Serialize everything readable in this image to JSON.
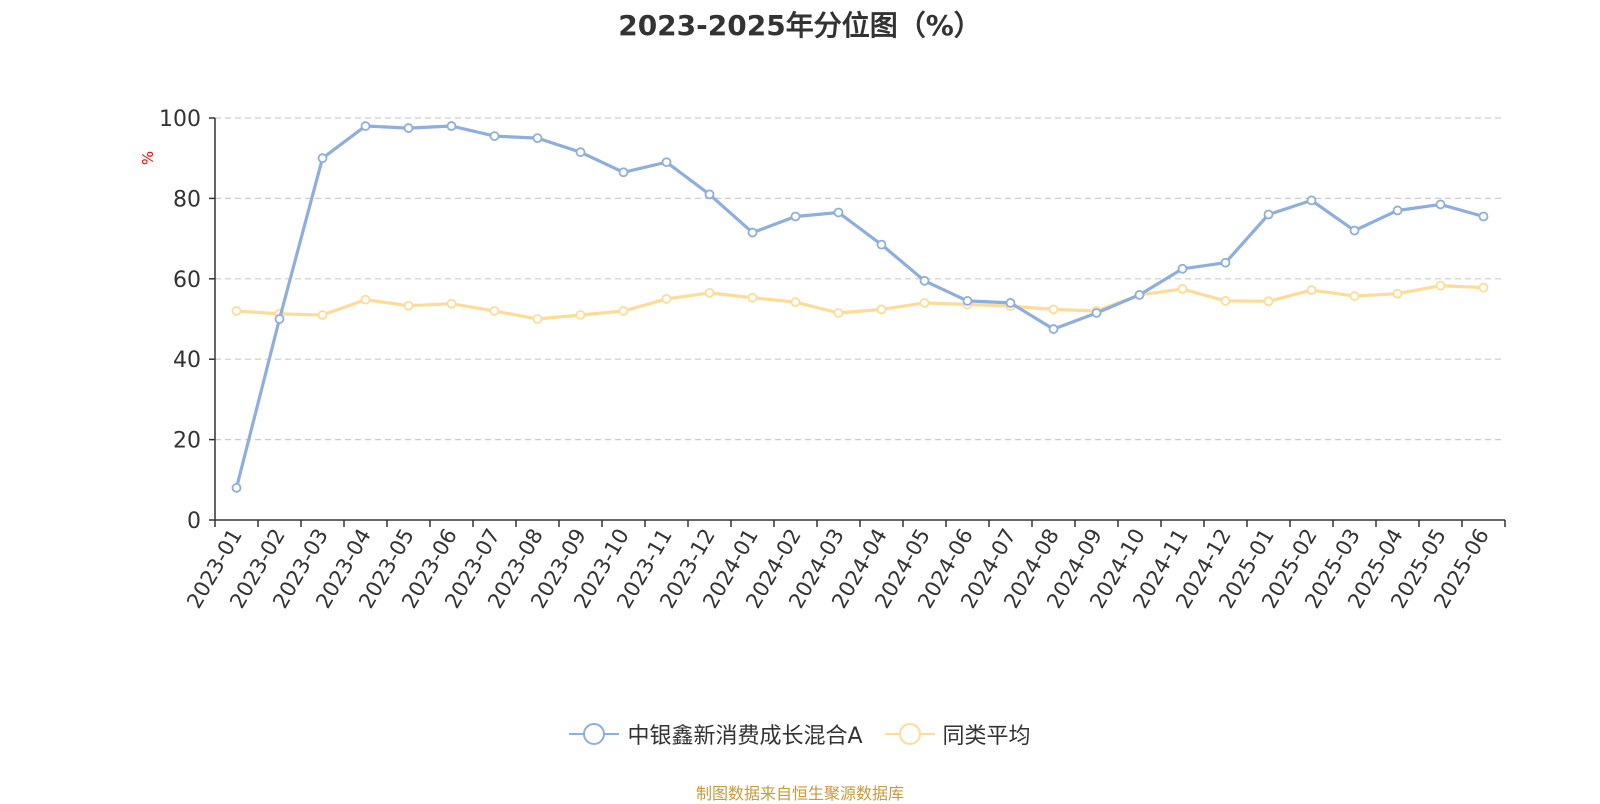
{
  "page": {
    "title": "2023-2025年分位图（%）",
    "source": "制图数据来自恒生聚源数据库"
  },
  "colors": {
    "series1": "#8eaedb",
    "series2": "#fddc9a",
    "axis": "#333333",
    "grid": "#cccccc",
    "ylabel": "#ff0000",
    "source": "#c79a3b"
  },
  "chart_data": {
    "type": "line",
    "title": "2023-2025年分位图（%）",
    "ylabel": "%",
    "xlabel": "",
    "ylim": [
      0,
      100
    ],
    "yticks": [
      0,
      20,
      40,
      60,
      80,
      100
    ],
    "grid": true,
    "legend": "bottom-center",
    "categories": [
      "2023-01",
      "2023-02",
      "2023-03",
      "2023-04",
      "2023-05",
      "2023-06",
      "2023-07",
      "2023-08",
      "2023-09",
      "2023-10",
      "2023-11",
      "2023-12",
      "2024-01",
      "2024-02",
      "2024-03",
      "2024-04",
      "2024-05",
      "2024-06",
      "2024-07",
      "2024-08",
      "2024-09",
      "2024-10",
      "2024-11",
      "2024-12",
      "2025-01",
      "2025-02",
      "2025-03",
      "2025-04",
      "2025-05",
      "2025-06"
    ],
    "series": [
      {
        "name": "中银鑫新消费成长混合A",
        "values": [
          8,
          50,
          90,
          98,
          97.5,
          98,
          95.5,
          95,
          91.5,
          86.5,
          89,
          81,
          71.5,
          75.5,
          76.5,
          68.5,
          59.5,
          54.5,
          54,
          47.5,
          51.5,
          56,
          62.5,
          64,
          76,
          79.5,
          72,
          77,
          78.5,
          75.5
        ]
      },
      {
        "name": "同类平均",
        "values": [
          52,
          51.3,
          51,
          54.8,
          53.3,
          53.8,
          52,
          50,
          51,
          52,
          55,
          56.5,
          55.3,
          54.2,
          51.5,
          52.4,
          54,
          53.6,
          53.2,
          52.4,
          52,
          56,
          57.5,
          54.5,
          54.4,
          57.2,
          55.7,
          56.3,
          58.3,
          57.8
        ]
      }
    ]
  }
}
